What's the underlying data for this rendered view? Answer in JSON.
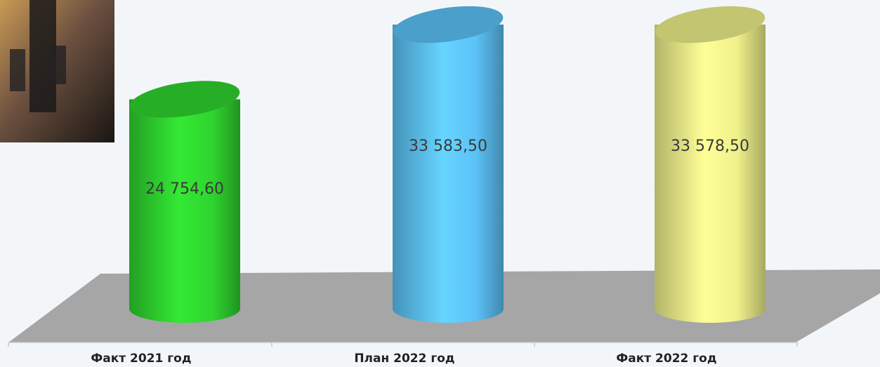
{
  "chart_data": {
    "type": "bar",
    "categories": [
      "Факт 2021 год",
      "План 2022 год",
      "Факт 2022 год"
    ],
    "values": [
      24754.6,
      33583.5,
      33578.5
    ],
    "value_labels": [
      "24 754,60",
      "33 583,50",
      "33 578,50"
    ],
    "colors": [
      "#2fd42f",
      "#5cc2f7",
      "#eef08a"
    ]
  }
}
